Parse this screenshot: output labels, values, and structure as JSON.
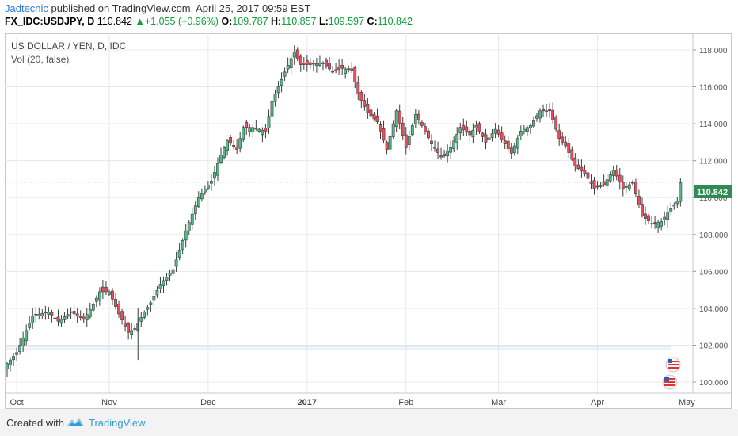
{
  "header": {
    "author": "Jadtecnic",
    "published": " published on TradingView.com, April 25, 2017 09:59 EST",
    "symbol": "FX_IDC:USDJPY, D",
    "last": "110.842",
    "change": "+1.055 (+0.96%)",
    "o_label": "O:",
    "o_value": "109.787",
    "h_label": "H:",
    "h_value": "110.857",
    "l_label": "L:",
    "l_value": "109.597",
    "c_label": "C:",
    "c_value": "110.842"
  },
  "chart": {
    "legend_title": "US DOLLAR / YEN, D, IDC",
    "legend_vol": "Vol (20, false)",
    "last_price_label": "110.842",
    "colors": {
      "up": "#53b987",
      "down": "#eb4d5c",
      "grid": "#e8e8e8",
      "lastline": "#1a7a45",
      "label_bg": "#2f8a53"
    }
  },
  "chart_data": {
    "type": "candlestick",
    "x_ticks": [
      "Oct",
      "Nov",
      "Dec",
      "2017",
      "Feb",
      "Mar",
      "Apr",
      "May"
    ],
    "y_ticks": [
      "100.000",
      "102.000",
      "104.000",
      "106.000",
      "108.000",
      "110.000",
      "112.000",
      "114.000",
      "116.000",
      "118.000"
    ],
    "ylim": [
      99.4,
      118.9
    ],
    "close_path": [
      [
        0,
        101.0
      ],
      [
        3,
        101.6
      ],
      [
        8,
        103.6
      ],
      [
        13,
        103.8
      ],
      [
        16,
        103.3
      ],
      [
        20,
        103.8
      ],
      [
        24,
        103.4
      ],
      [
        27,
        104.2
      ],
      [
        29,
        104.9
      ],
      [
        32,
        104.9
      ],
      [
        35,
        103.7
      ],
      [
        38,
        102.7
      ],
      [
        40,
        102.9
      ],
      [
        43,
        103.8
      ],
      [
        45,
        104.3
      ],
      [
        48,
        105.3
      ],
      [
        52,
        106.1
      ],
      [
        56,
        108.2
      ],
      [
        60,
        110.0
      ],
      [
        64,
        110.9
      ],
      [
        67,
        112.3
      ],
      [
        69,
        113.1
      ],
      [
        72,
        112.6
      ],
      [
        74,
        113.8
      ],
      [
        77,
        113.8
      ],
      [
        81,
        113.6
      ],
      [
        83,
        115.2
      ],
      [
        87,
        116.8
      ],
      [
        90,
        117.9
      ],
      [
        92,
        117.2
      ],
      [
        95,
        117.2
      ],
      [
        99,
        117.3
      ],
      [
        102,
        116.8
      ],
      [
        105,
        117.0
      ],
      [
        108,
        116.9
      ],
      [
        110,
        115.6
      ],
      [
        113,
        114.6
      ],
      [
        116,
        114.1
      ],
      [
        119,
        112.6
      ],
      [
        122,
        114.7
      ],
      [
        125,
        112.7
      ],
      [
        128,
        114.5
      ],
      [
        130,
        113.9
      ],
      [
        133,
        112.9
      ],
      [
        136,
        112.2
      ],
      [
        139,
        112.7
      ],
      [
        142,
        113.8
      ],
      [
        145,
        113.4
      ],
      [
        147,
        113.9
      ],
      [
        150,
        113.0
      ],
      [
        153,
        113.7
      ],
      [
        156,
        112.9
      ],
      [
        158,
        112.4
      ],
      [
        161,
        113.6
      ],
      [
        164,
        113.9
      ],
      [
        167,
        114.7
      ],
      [
        170,
        114.7
      ],
      [
        173,
        113.2
      ],
      [
        175,
        112.8
      ],
      [
        178,
        111.7
      ],
      [
        181,
        111.3
      ],
      [
        184,
        110.5
      ],
      [
        187,
        110.7
      ],
      [
        190,
        111.5
      ],
      [
        193,
        110.5
      ],
      [
        196,
        110.8
      ],
      [
        199,
        109.0
      ],
      [
        202,
        108.6
      ],
      [
        205,
        108.7
      ],
      [
        208,
        109.4
      ],
      [
        210,
        109.8
      ],
      [
        211,
        110.8
      ]
    ]
  },
  "footer": {
    "created_with": "Created with",
    "brand": "TradingView"
  }
}
